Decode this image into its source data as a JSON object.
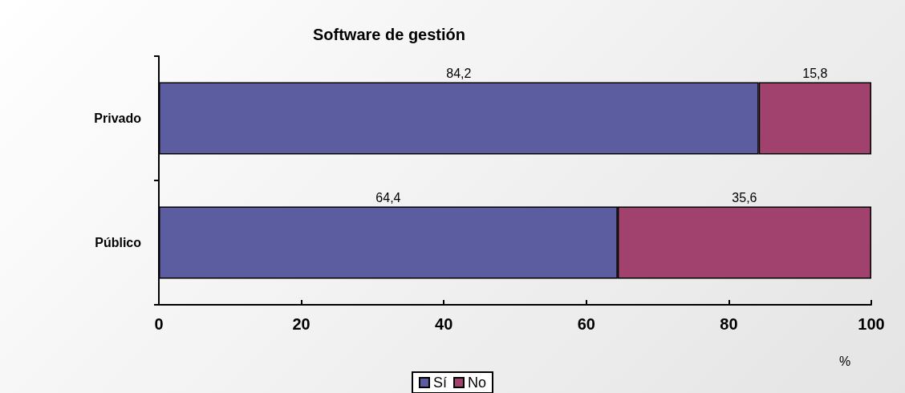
{
  "chart_data": {
    "type": "bar",
    "orientation": "horizontal",
    "stacked": true,
    "title": "Software de gestión",
    "xlabel": "%",
    "categories": [
      "Privado",
      "Público"
    ],
    "series": [
      {
        "name": "Sí",
        "color": "#5c5ca0",
        "values": [
          84.2,
          64.4
        ],
        "value_labels": [
          "84,2",
          "64,4"
        ]
      },
      {
        "name": "No",
        "color": "#a0416e",
        "values": [
          15.8,
          35.6
        ],
        "value_labels": [
          "15,8",
          "35,6"
        ]
      }
    ],
    "xlim": [
      0,
      100
    ],
    "xticks": [
      0,
      20,
      40,
      60,
      80,
      100
    ],
    "grid": false,
    "legend": "bottom"
  }
}
